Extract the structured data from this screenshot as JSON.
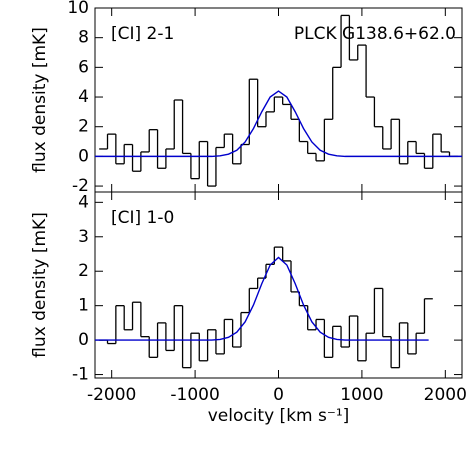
{
  "chart_data": [
    {
      "type": "step",
      "label": "[CI] 2-1",
      "annotation": "PLCK G138.6+62.0",
      "ylabel": "flux density [mK]",
      "xlim": [
        -2200,
        2200
      ],
      "xticks": [
        -2000,
        -1000,
        0,
        1000,
        2000
      ],
      "ylim": [
        -2.4,
        10
      ],
      "yticks": [
        -2,
        0,
        2,
        4,
        6,
        8,
        10
      ],
      "series": [
        {
          "name": "spectrum",
          "style": "step",
          "color": "#000000",
          "x": [
            -2100,
            -2000,
            -1900,
            -1800,
            -1700,
            -1600,
            -1500,
            -1400,
            -1300,
            -1200,
            -1100,
            -1000,
            -900,
            -800,
            -700,
            -600,
            -500,
            -400,
            -300,
            -200,
            -100,
            0,
            100,
            200,
            300,
            400,
            500,
            600,
            700,
            800,
            900,
            1000,
            1100,
            1200,
            1300,
            1400,
            1500,
            1600,
            1700,
            1800,
            1900,
            2000,
            2100
          ],
          "values": [
            0.5,
            1.5,
            -0.5,
            0.8,
            -1,
            0.3,
            1.8,
            -0.8,
            0.5,
            3.8,
            0.2,
            -1.5,
            1.0,
            -2.0,
            0.6,
            1.5,
            -0.5,
            0.8,
            5.2,
            2.0,
            3.0,
            4.0,
            3.5,
            2.5,
            1.0,
            0.2,
            -0.3,
            2.5,
            6.0,
            9.5,
            6.5,
            7.5,
            4.0,
            2.0,
            0.5,
            2.5,
            -0.5,
            1.0,
            0.2,
            -0.8,
            1.5,
            0.3,
            0.0
          ]
        },
        {
          "name": "fit",
          "style": "line",
          "color": "#0000cc",
          "x": [
            -2200,
            -1000,
            -900,
            -800,
            -700,
            -600,
            -500,
            -400,
            -300,
            -200,
            -100,
            0,
            100,
            200,
            300,
            400,
            500,
            600,
            700,
            800,
            900,
            1000,
            2200
          ],
          "values": [
            0,
            0,
            0,
            0,
            0.04,
            0.15,
            0.41,
            0.97,
            1.88,
            3.01,
            4.0,
            4.4,
            4.0,
            3.01,
            1.88,
            0.97,
            0.41,
            0.15,
            0.04,
            0,
            0,
            0,
            0
          ]
        }
      ]
    },
    {
      "type": "step",
      "label": "[CI] 1-0",
      "ylabel": "flux density [mK]",
      "xlabel": "velocity [km s⁻¹]",
      "xlim": [
        -2200,
        2200
      ],
      "xticks": [
        -2000,
        -1000,
        0,
        1000,
        2000
      ],
      "ylim": [
        -1.1,
        4.3
      ],
      "yticks": [
        -1,
        0,
        1,
        2,
        3,
        4
      ],
      "series": [
        {
          "name": "spectrum",
          "style": "step",
          "color": "#000000",
          "x": [
            -2100,
            -2000,
            -1900,
            -1800,
            -1700,
            -1600,
            -1500,
            -1400,
            -1300,
            -1200,
            -1100,
            -1000,
            -900,
            -800,
            -700,
            -600,
            -500,
            -400,
            -300,
            -200,
            -100,
            0,
            100,
            200,
            300,
            400,
            500,
            600,
            700,
            800,
            900,
            1000,
            1100,
            1200,
            1300,
            1400,
            1500,
            1600,
            1700,
            1800
          ],
          "values": [
            0,
            -0.1,
            1.0,
            0.3,
            1.1,
            0.1,
            -0.5,
            0.5,
            -0.3,
            1.0,
            -0.8,
            0.2,
            -0.6,
            0.3,
            -0.4,
            0.6,
            -0.2,
            0.8,
            1.5,
            1.8,
            2.2,
            2.7,
            2.3,
            1.4,
            1.0,
            0.3,
            0.6,
            -0.5,
            0.4,
            -0.2,
            0.7,
            -0.6,
            0.2,
            1.5,
            0.1,
            -0.8,
            0.5,
            -0.4,
            0.2,
            1.2
          ]
        },
        {
          "name": "fit",
          "style": "line",
          "color": "#0000cc",
          "x": [
            -2200,
            -1000,
            -900,
            -800,
            -700,
            -600,
            -500,
            -400,
            -300,
            -200,
            -100,
            0,
            100,
            200,
            300,
            400,
            500,
            600,
            700,
            800,
            900,
            1000,
            1800
          ],
          "values": [
            0,
            0,
            0,
            0,
            0.02,
            0.08,
            0.23,
            0.53,
            1.02,
            1.64,
            2.18,
            2.4,
            2.18,
            1.64,
            1.02,
            0.53,
            0.23,
            0.08,
            0.02,
            0,
            0,
            0,
            0
          ]
        }
      ]
    }
  ]
}
